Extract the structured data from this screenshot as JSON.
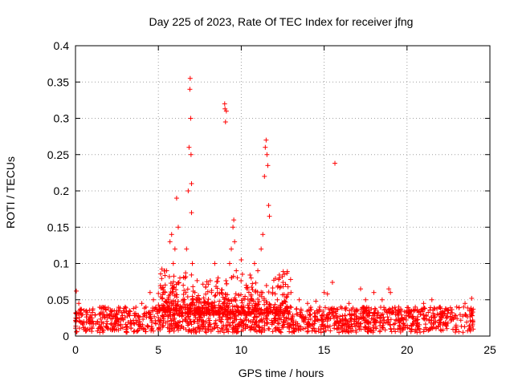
{
  "chart_data": {
    "type": "scatter",
    "title": "Day 225 of 2023, Rate Of TEC Index for receiver jfng",
    "xlabel": "GPS time / hours",
    "ylabel": "ROTI / TECUs",
    "xlim": [
      0,
      25
    ],
    "ylim": [
      0,
      0.4
    ],
    "xticks": [
      0,
      5,
      10,
      15,
      20,
      25
    ],
    "xtick_labels": [
      "0",
      "5",
      "10",
      "15",
      "20",
      "25"
    ],
    "yticks": [
      0,
      0.05,
      0.1,
      0.15,
      0.2,
      0.25,
      0.3,
      0.35,
      0.4
    ],
    "ytick_labels": [
      "0",
      "0.05",
      "0.1",
      "0.15",
      "0.2",
      "0.25",
      "0.3",
      "0.35",
      "0.4"
    ],
    "grid": true,
    "marker": "+",
    "color": "#ff0000",
    "series": [
      {
        "name": "ROTI",
        "points": [
          [
            0.05,
            0.062
          ],
          [
            0.2,
            0.045
          ],
          [
            0.5,
            0.02
          ],
          [
            1.0,
            0.025
          ],
          [
            1.5,
            0.03
          ],
          [
            2.0,
            0.028
          ],
          [
            2.5,
            0.035
          ],
          [
            3.0,
            0.04
          ],
          [
            3.5,
            0.038
          ],
          [
            4.0,
            0.045
          ],
          [
            4.5,
            0.06
          ],
          [
            4.7,
            0.05
          ],
          [
            5.3,
            0.06
          ],
          [
            5.5,
            0.09
          ],
          [
            5.7,
            0.13
          ],
          [
            5.8,
            0.14
          ],
          [
            5.9,
            0.1
          ],
          [
            6.0,
            0.12
          ],
          [
            6.1,
            0.19
          ],
          [
            6.2,
            0.15
          ],
          [
            6.3,
            0.08
          ],
          [
            6.5,
            0.07
          ],
          [
            6.7,
            0.12
          ],
          [
            6.8,
            0.2
          ],
          [
            6.85,
            0.26
          ],
          [
            6.9,
            0.34
          ],
          [
            6.92,
            0.355
          ],
          [
            6.95,
            0.3
          ],
          [
            6.97,
            0.25
          ],
          [
            7.0,
            0.21
          ],
          [
            7.0,
            0.17
          ],
          [
            7.05,
            0.1
          ],
          [
            7.2,
            0.06
          ],
          [
            7.5,
            0.05
          ],
          [
            8.0,
            0.045
          ],
          [
            8.4,
            0.1
          ],
          [
            8.6,
            0.08
          ],
          [
            8.8,
            0.06
          ],
          [
            9.0,
            0.32
          ],
          [
            9.02,
            0.313
          ],
          [
            9.05,
            0.295
          ],
          [
            9.1,
            0.31
          ],
          [
            9.3,
            0.1
          ],
          [
            9.4,
            0.12
          ],
          [
            9.5,
            0.15
          ],
          [
            9.55,
            0.16
          ],
          [
            9.6,
            0.13
          ],
          [
            9.7,
            0.09
          ],
          [
            10.0,
            0.105
          ],
          [
            10.3,
            0.07
          ],
          [
            10.6,
            0.08
          ],
          [
            10.8,
            0.1
          ],
          [
            11.0,
            0.09
          ],
          [
            11.2,
            0.12
          ],
          [
            11.3,
            0.14
          ],
          [
            11.4,
            0.22
          ],
          [
            11.45,
            0.26
          ],
          [
            11.5,
            0.27
          ],
          [
            11.55,
            0.25
          ],
          [
            11.6,
            0.235
          ],
          [
            11.65,
            0.18
          ],
          [
            11.7,
            0.165
          ],
          [
            11.9,
            0.06
          ],
          [
            12.3,
            0.08
          ],
          [
            12.6,
            0.085
          ],
          [
            13.0,
            0.06
          ],
          [
            13.5,
            0.05
          ],
          [
            14.0,
            0.045
          ],
          [
            14.5,
            0.048
          ],
          [
            15.0,
            0.06
          ],
          [
            15.2,
            0.058
          ],
          [
            15.5,
            0.074
          ],
          [
            15.65,
            0.238
          ],
          [
            16.0,
            0.04
          ],
          [
            16.5,
            0.045
          ],
          [
            17.2,
            0.065
          ],
          [
            17.5,
            0.05
          ],
          [
            18.0,
            0.06
          ],
          [
            18.5,
            0.05
          ],
          [
            18.9,
            0.065
          ],
          [
            19.0,
            0.06
          ],
          [
            19.5,
            0.04
          ],
          [
            20.0,
            0.035
          ],
          [
            20.5,
            0.04
          ],
          [
            21.0,
            0.045
          ],
          [
            21.5,
            0.05
          ],
          [
            22.0,
            0.04
          ],
          [
            22.5,
            0.035
          ],
          [
            23.0,
            0.04
          ],
          [
            23.5,
            0.045
          ],
          [
            23.9,
            0.052
          ]
        ]
      }
    ],
    "baseline_band": {
      "ymin": 0.005,
      "ymax": 0.04
    }
  }
}
